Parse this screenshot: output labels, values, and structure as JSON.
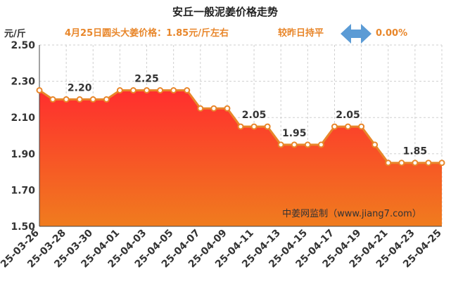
{
  "colors": {
    "accent": "#e8862a",
    "marker": "#e8862a",
    "fill_top": "#ff2e2e",
    "fill_bottom": "#f07c1e",
    "grid": "#cfcfcf",
    "arrow": "#5b9bd5",
    "text_dark": "#333333"
  },
  "header": {
    "title": "安丘一般泥姜价格走势",
    "price_note": "4月25日圆头大姜价格：1.85元/斤左右",
    "compare_label": "较昨日持平",
    "compare_icon": "double-arrow-icon",
    "change_percent": "0.00%"
  },
  "watermark": "中姜网监制（www.jiang7.com）",
  "chart_data": {
    "type": "area",
    "title": "安丘一般泥姜价格走势",
    "ylabel": "元/斤",
    "xlabel": "",
    "ylim": [
      1.5,
      2.5
    ],
    "yticks": [
      "1.50",
      "1.70",
      "1.90",
      "2.10",
      "2.30",
      "2.50"
    ],
    "grid": true,
    "x": [
      "25-03-26",
      "25-03-27",
      "25-03-28",
      "25-03-29",
      "25-03-30",
      "25-03-31",
      "25-04-01",
      "25-04-02",
      "25-04-03",
      "25-04-04",
      "25-04-05",
      "25-04-06",
      "25-04-07",
      "25-04-08",
      "25-04-09",
      "25-04-10",
      "25-04-11",
      "25-04-12",
      "25-04-13",
      "25-04-14",
      "25-04-15",
      "25-04-16",
      "25-04-17",
      "25-04-18",
      "25-04-19",
      "25-04-20",
      "25-04-21",
      "25-04-22",
      "25-04-23",
      "25-04-24",
      "25-04-25"
    ],
    "xtick_labels": [
      "25-03-26",
      "25-03-28",
      "25-03-30",
      "25-04-01",
      "25-04-03",
      "25-04-05",
      "25-04-07",
      "25-04-09",
      "25-04-11",
      "25-04-13",
      "25-04-15",
      "25-04-17",
      "25-04-19",
      "25-04-21",
      "25-04-23",
      "25-04-25"
    ],
    "values": [
      2.25,
      2.2,
      2.2,
      2.2,
      2.2,
      2.2,
      2.25,
      2.25,
      2.25,
      2.25,
      2.25,
      2.25,
      2.15,
      2.15,
      2.15,
      2.05,
      2.05,
      2.05,
      1.95,
      1.95,
      1.95,
      1.95,
      2.05,
      2.05,
      2.05,
      1.95,
      1.85,
      1.85,
      1.85,
      1.85,
      1.85
    ],
    "data_labels": [
      {
        "index": 3,
        "text": "2.20"
      },
      {
        "index": 8,
        "text": "2.25"
      },
      {
        "index": 16,
        "text": "2.05"
      },
      {
        "index": 19,
        "text": "1.95"
      },
      {
        "index": 23,
        "text": "2.05"
      },
      {
        "index": 28,
        "text": "1.85"
      }
    ]
  }
}
